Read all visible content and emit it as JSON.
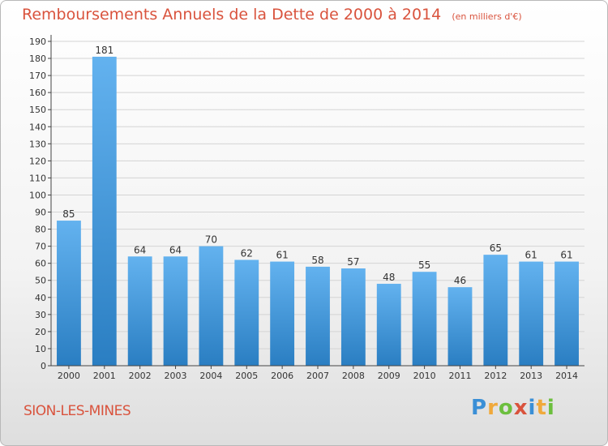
{
  "header": {
    "title": "Remboursements Annuels de la Dette de 2000 à 2014",
    "subtitle": "(en milliers d'€)"
  },
  "footer": {
    "commune": "SION-LES-MINES",
    "brand": [
      "P",
      "r",
      "o",
      "x",
      "i",
      "t",
      "i"
    ]
  },
  "colors": {
    "title": "#d9533d",
    "bar_light": "#63b2ef",
    "bar_dark": "#2a7ec2",
    "brand": [
      "#3a8fd6",
      "#f0a93b",
      "#6cbf3e",
      "#d9533d",
      "#3a8fd6",
      "#f0a93b",
      "#6cbf3e"
    ]
  },
  "chart_data": {
    "type": "bar",
    "title": "Remboursements Annuels de la Dette de 2000 à 2014",
    "subtitle": "(en milliers d'€)",
    "xlabel": "",
    "ylabel": "",
    "categories": [
      "2000",
      "2001",
      "2002",
      "2003",
      "2004",
      "2005",
      "2006",
      "2007",
      "2008",
      "2009",
      "2010",
      "2011",
      "2012",
      "2013",
      "2014"
    ],
    "values": [
      85,
      181,
      64,
      64,
      70,
      62,
      61,
      58,
      57,
      48,
      55,
      46,
      65,
      61,
      61
    ],
    "ylim": [
      0,
      190
    ],
    "yticks": [
      0,
      10,
      20,
      30,
      40,
      50,
      60,
      70,
      80,
      90,
      100,
      110,
      120,
      130,
      140,
      150,
      160,
      170,
      180,
      190
    ],
    "grid": true,
    "data_labels": true
  }
}
